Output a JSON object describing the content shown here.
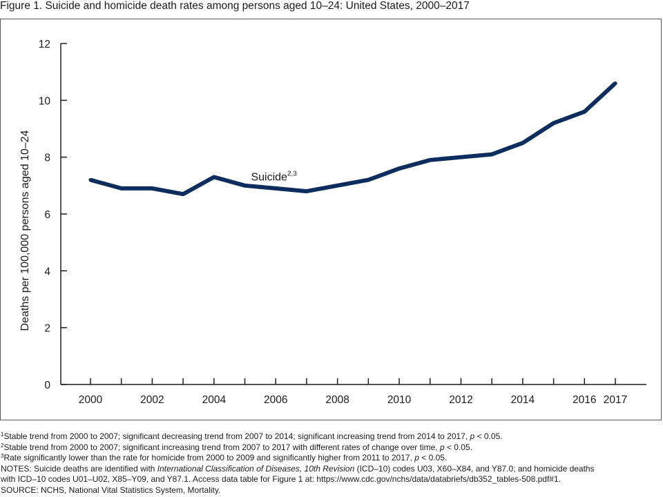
{
  "figure": {
    "title": "Figure 1. Suicide and homicide death rates among persons aged 10–24: United States, 2000–2017"
  },
  "chart_data": {
    "type": "line",
    "title": "Figure 1. Suicide and homicide death rates among persons aged 10–24: United States, 2000–2017",
    "xlabel": "",
    "ylabel": "Deaths per 100,000 persons aged 10–24",
    "xlim": [
      2000,
      2017
    ],
    "ylim": [
      0,
      12
    ],
    "y_ticks": [
      0,
      2,
      4,
      6,
      8,
      10,
      12
    ],
    "x_ticks": [
      2000,
      2002,
      2004,
      2006,
      2008,
      2010,
      2012,
      2014,
      2016,
      2017
    ],
    "x": [
      2000,
      2001,
      2002,
      2003,
      2004,
      2005,
      2006,
      2007,
      2008,
      2009,
      2010,
      2011,
      2012,
      2013,
      2014,
      2015,
      2016,
      2017
    ],
    "series": [
      {
        "name": "Suicide",
        "label_superscript": "2,3",
        "color": "#0c2d5e",
        "values": [
          7.2,
          6.9,
          6.9,
          6.7,
          7.3,
          7.0,
          6.9,
          6.8,
          7.0,
          7.2,
          7.6,
          7.9,
          8.0,
          8.1,
          8.5,
          9.2,
          9.6,
          10.6
        ]
      }
    ],
    "grid": false,
    "legend": "none"
  },
  "notes": {
    "fn1_mark": "1",
    "fn1_text": "Stable trend from 2000 to 2007; significant decreasing trend from 2007 to 2014; significant increasing trend from 2014 to 2017, ",
    "fn1_p": "p",
    "fn1_end": " < 0.05.",
    "fn2_mark": "2",
    "fn2_text": "Stable trend from 2000 to 2007; significant increasing trend from 2007 to 2017 with different rates of change over time, ",
    "fn2_p": "p",
    "fn2_end": " < 0.05.",
    "fn3_mark": "3",
    "fn3_text": "Rate significantly lower than the rate for homicide from 2000 to 2009 and significantly higher from 2011 to 2017, ",
    "fn3_p": "p",
    "fn3_end": " < 0.05.",
    "notes_a": "NOTES: Suicide deaths are identified with ",
    "notes_italic": "International Classification of Diseases, 10th Revision",
    "notes_b": " (ICD–10) codes U03, X60–X84, and Y87.0; and homicide deaths",
    "notes_line2": "with ICD–10 codes U01–U02, X85–Y09, and Y87.1. Access data table for Figure 1 at: https://www.cdc.gov/nchs/data/databriefs/db352_tables-508.pdf#1.",
    "source": "SOURCE: NCHS, National Vital Statistics System, Mortality."
  }
}
